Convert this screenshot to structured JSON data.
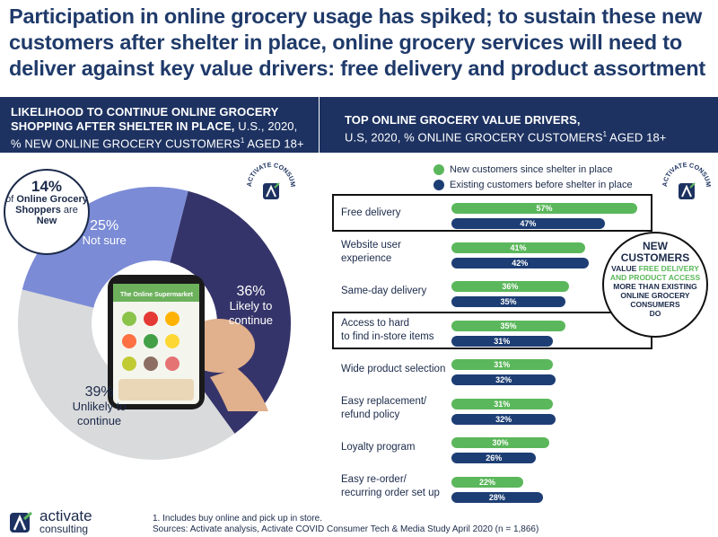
{
  "headline": "Participation in online grocery usage has spiked; to sustain these new customers after shelter in place, online grocery services will need to deliver against key value drivers: free delivery and product assortment",
  "left_panel": {
    "title_bold": "LIKELIHOOD TO CONTINUE ONLINE GROCERY SHOPPING AFTER SHELTER IN PLACE,",
    "title_rest": " U.S., 2020, % NEW ONLINE GROCERY CUSTOMERS",
    "title_sup": "1",
    "title_end": " AGED 18+",
    "bubble_pct": "14%",
    "bubble_text1": "of ",
    "bubble_bold": "Online Grocery Shoppers",
    "bubble_text2": " are ",
    "bubble_bold2": "New"
  },
  "right_panel": {
    "title_bold": "TOP ONLINE GROCERY VALUE DRIVERS,",
    "title_rest": "U.S, 2020, % ONLINE GROCERY CUSTOMERS",
    "title_sup": "1",
    "title_end": " AGED 18+"
  },
  "badge_text": "ACTIVATE CONSUMER INSIGHT",
  "pie_phone_text": "The Online Supermarket",
  "callout": {
    "line1": "NEW",
    "line2": "CUSTOMERS",
    "line3a": "VALUE ",
    "line3b": "FREE DELIVERY",
    "line4": "AND PRODUCT ACCESS",
    "line5": "MORE THAN EXISTING",
    "line6": "ONLINE GROCERY",
    "line7": "CONSUMERS",
    "line8": "DO"
  },
  "footer": {
    "logo_name": "activate",
    "logo_sub": "consulting",
    "note1": "1. Includes buy online and pick up in store.",
    "note2": "Sources: Activate analysis, Activate COVID Consumer Tech & Media Study April 2020 (n = 1,866)"
  },
  "colors": {
    "navy": "#1d3261",
    "green": "#5bb75b",
    "bar_navy": "#1d3e74",
    "pie_continue": "#35346a",
    "pie_unlikely": "#d9dadb",
    "pie_notsure": "#7b8bd6"
  },
  "chart_data": [
    {
      "type": "pie",
      "title": "Likelihood to continue online grocery shopping after shelter in place",
      "slices": [
        {
          "label": "Likely to continue",
          "value": 36,
          "display": "36%",
          "lines": [
            "Likely to",
            "continue"
          ]
        },
        {
          "label": "Unlikely to continue",
          "value": 39,
          "display": "39%",
          "lines": [
            "Unlikely to",
            "continue"
          ]
        },
        {
          "label": "Not sure",
          "value": 25,
          "display": "25%",
          "lines": [
            "Not sure"
          ]
        }
      ]
    },
    {
      "type": "bar",
      "orientation": "horizontal",
      "title": "Top online grocery value drivers",
      "xlim": [
        0,
        100
      ],
      "categories": [
        {
          "lines": [
            "Free delivery"
          ],
          "highlight": true
        },
        {
          "lines": [
            "Website user",
            "experience"
          ],
          "highlight": false
        },
        {
          "lines": [
            "Same-day delivery"
          ],
          "highlight": false
        },
        {
          "lines": [
            "Access to hard",
            "to find in-store items"
          ],
          "highlight": true
        },
        {
          "lines": [
            "Wide product selection"
          ],
          "highlight": false
        },
        {
          "lines": [
            "Easy replacement/",
            "refund policy"
          ],
          "highlight": false
        },
        {
          "lines": [
            "Loyalty program"
          ],
          "highlight": false
        },
        {
          "lines": [
            "Easy re-order/",
            "recurring order set up"
          ],
          "highlight": false
        }
      ],
      "series": [
        {
          "name": "New customers since shelter in place",
          "color": "#5bb75b",
          "values": [
            57,
            41,
            36,
            35,
            31,
            31,
            30,
            22
          ]
        },
        {
          "name": "Existing customers before shelter in place",
          "color": "#1d3e74",
          "values": [
            47,
            42,
            35,
            31,
            32,
            32,
            26,
            28
          ]
        }
      ]
    }
  ]
}
